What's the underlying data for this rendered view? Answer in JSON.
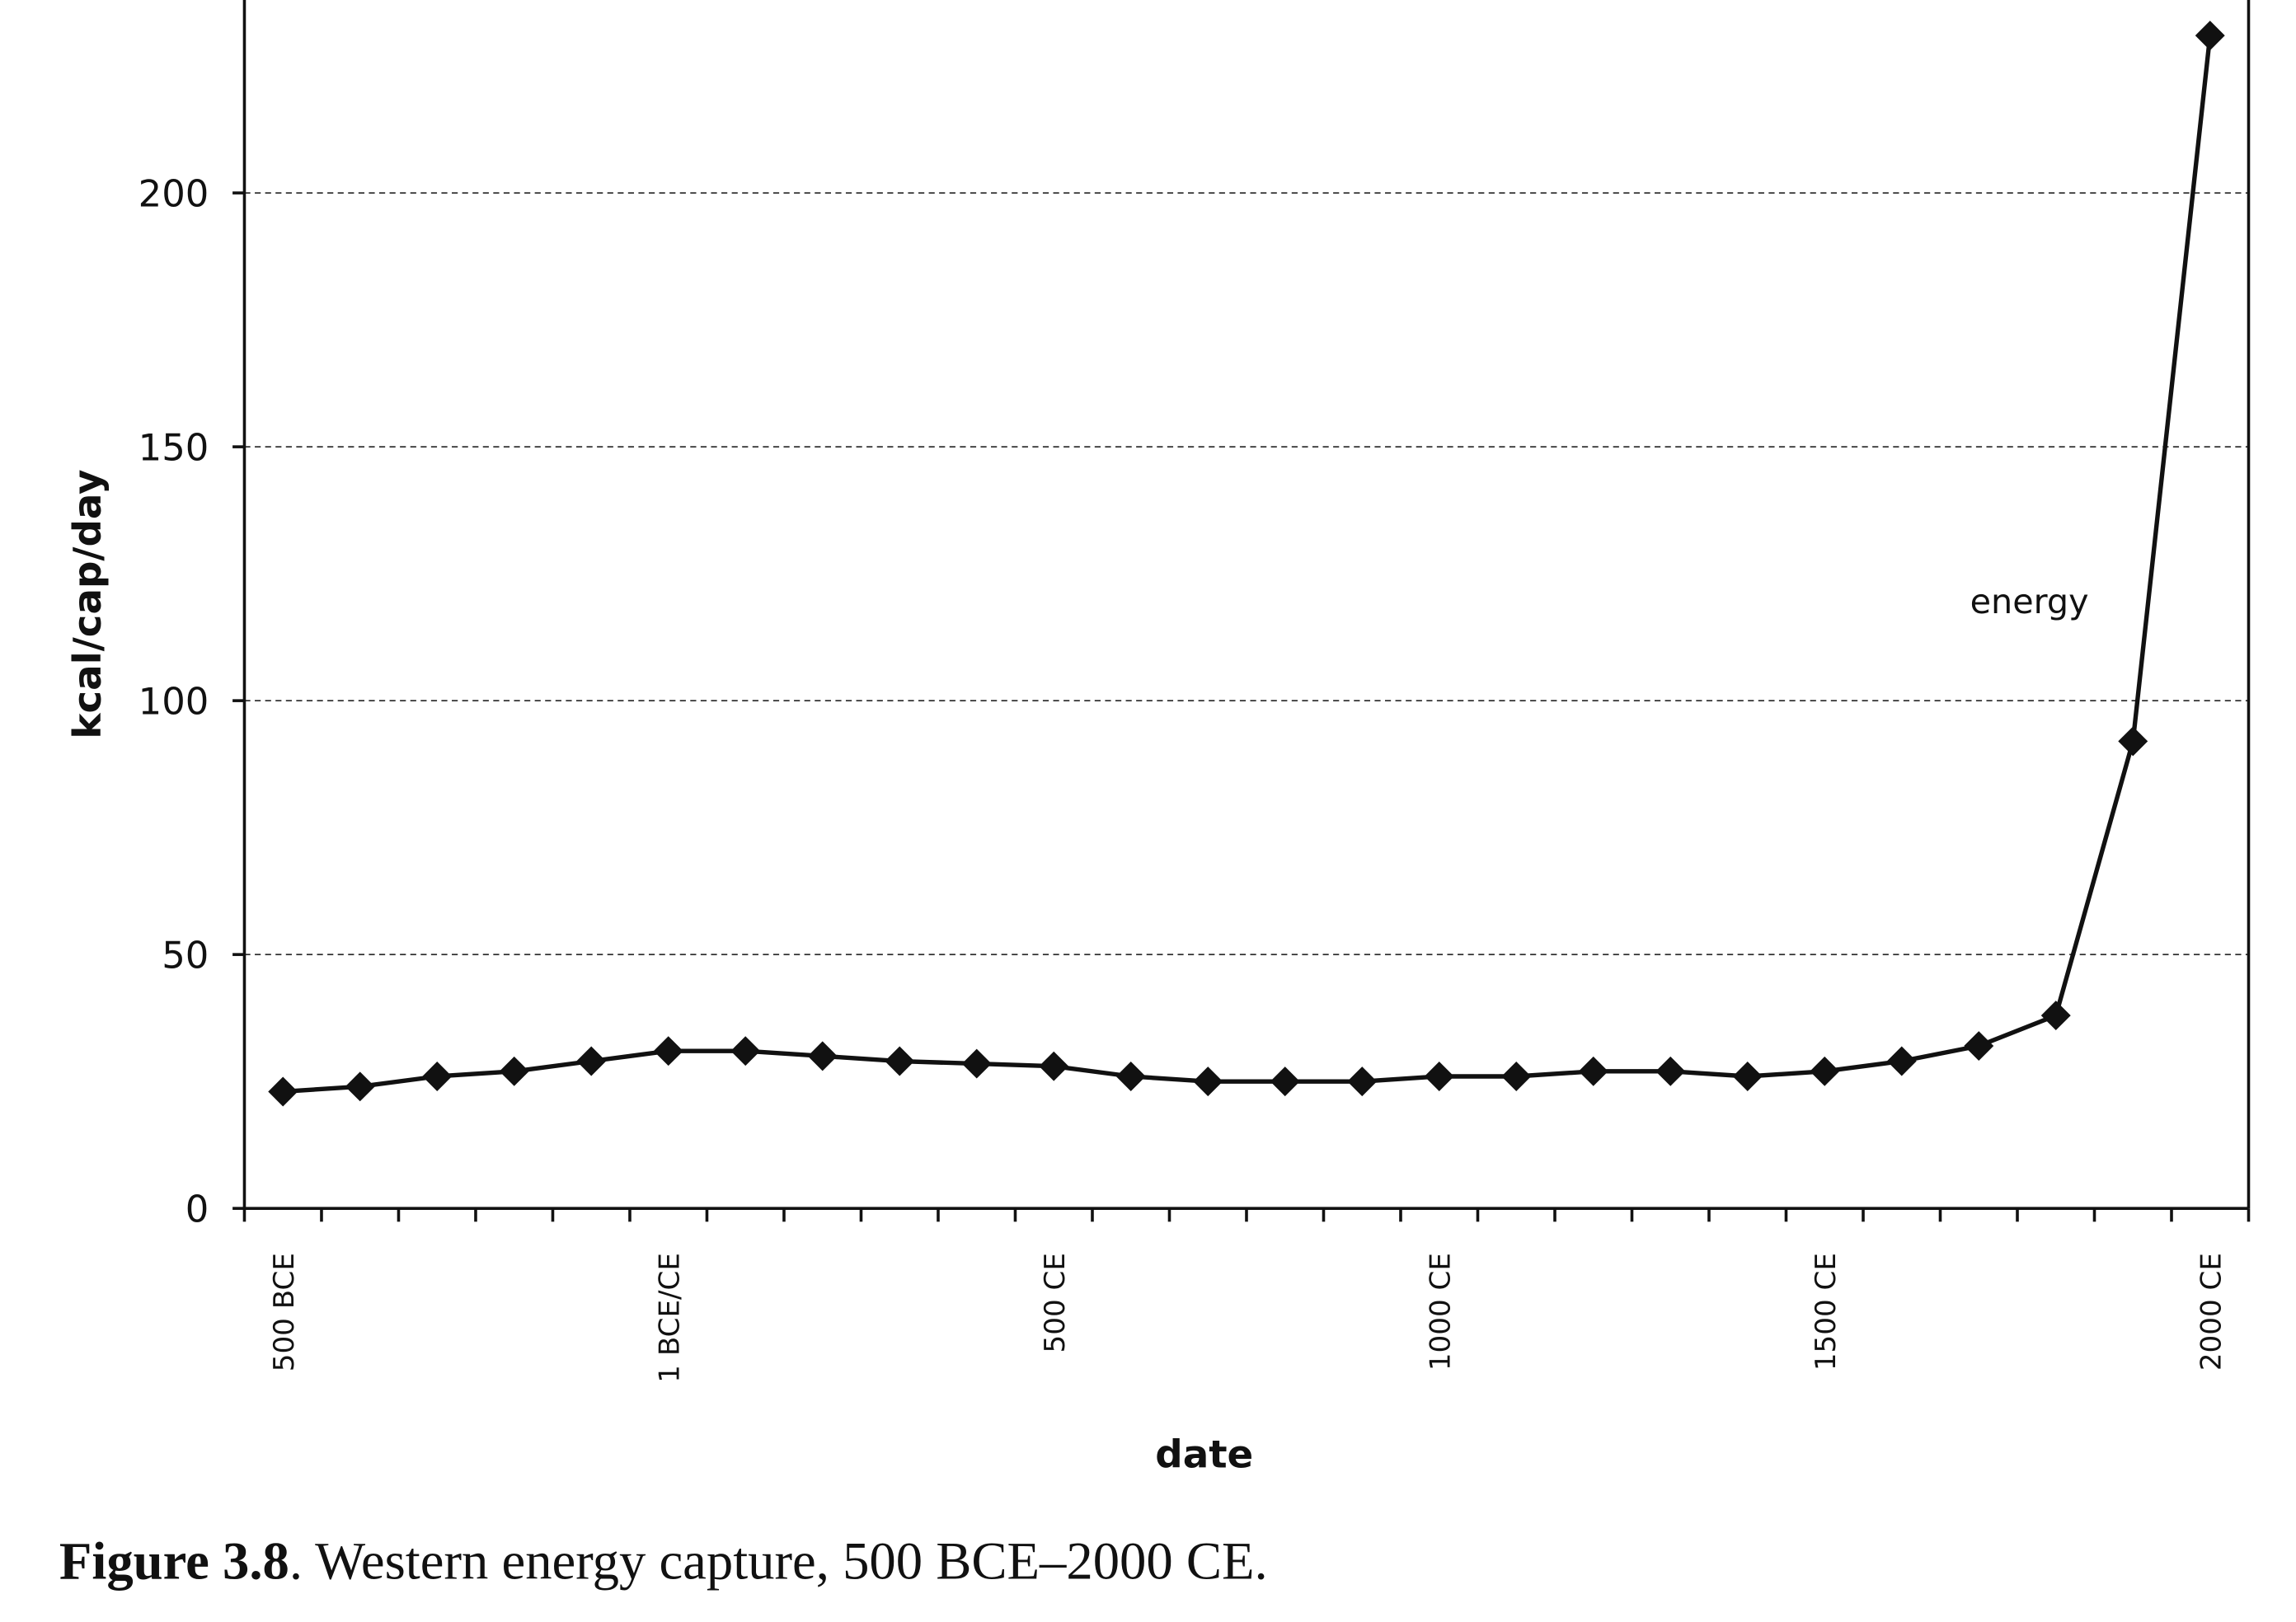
{
  "chart_data": {
    "type": "line",
    "caption_label": "Figure 3.8",
    "caption_text": ". Western energy capture, 500 BCE–2000 CE.",
    "x_label": "date",
    "y_label": "kcal/cap/day",
    "annotation": "energy",
    "categories": [
      "500 BCE",
      null,
      null,
      null,
      null,
      "1 BCE/CE",
      null,
      null,
      null,
      null,
      "500 CE",
      null,
      null,
      null,
      null,
      "1000 CE",
      null,
      null,
      null,
      null,
      "1500 CE",
      null,
      null,
      null,
      null,
      "2000 CE"
    ],
    "series": [
      {
        "name": "energy",
        "color": "#111111",
        "values": [
          23,
          24,
          26,
          27,
          29,
          31,
          31,
          30,
          29,
          28.5,
          28,
          26,
          25,
          25,
          25,
          26,
          26,
          27,
          27,
          26,
          27,
          29,
          32,
          38,
          92,
          231
        ]
      }
    ],
    "ylim": [
      0,
      238
    ],
    "yticks": [
      0,
      50,
      100,
      150,
      200
    ],
    "grid": true
  }
}
